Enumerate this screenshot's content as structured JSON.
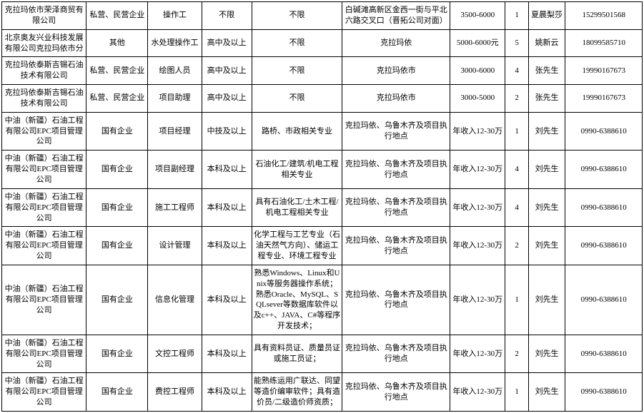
{
  "rows": [
    {
      "c0": "克拉玛依市荣泽商贸有限公司",
      "c1": "私营、民营企业",
      "c2": "操作工",
      "c3": "不限",
      "c4": "不限",
      "c5": "白碱滩高新区金西一街与平北六路交叉口（晋拓公司对面）",
      "c6": "3500-6000",
      "c7": "1",
      "c8": "夏晨梨莎",
      "c9": "15299501568"
    },
    {
      "c0": "北京奥友兴业科技发展有限公司克拉玛依市分",
      "c1": "其他",
      "c2": "水处理操作工",
      "c3": "高中及以上",
      "c4": "不限",
      "c5": "克拉玛依",
      "c6": "5000-6000元",
      "c7": "5",
      "c8": "姚新云",
      "c9": "18099585710"
    },
    {
      "c0": "克拉玛依泰斯吉锡石油技术有限公司",
      "c1": "私营、民营企业",
      "c2": "绘图人员",
      "c3": "高中及以上",
      "c4": "不限",
      "c5": "克拉玛依市",
      "c6": "3000-6000",
      "c7": "4",
      "c8": "张先生",
      "c9": "19990167673"
    },
    {
      "c0": "克拉玛依泰斯吉锡石油技术有限公司",
      "c1": "私营、民营企业",
      "c2": "项目助理",
      "c3": "高中及以上",
      "c4": "不限",
      "c5": "克拉玛依市",
      "c6": "3000-5000",
      "c7": "2",
      "c8": "张先生",
      "c9": "19990167673"
    },
    {
      "c0": "中油（新疆）石油工程有限公司EPC项目管理公司",
      "c1": "国有企业",
      "c2": "项目经理",
      "c3": "中技及以上",
      "c4": "路桥、市政相关专业",
      "c5": "克拉玛依、乌鲁木齐及项目执行地点",
      "c6": "年收入12-30万",
      "c7": "1",
      "c8": "刘先生",
      "c9": "0990-6388610"
    },
    {
      "c0": "中油（新疆）石油工程有限公司EPC项目管理公司",
      "c1": "国有企业",
      "c2": "项目副经理",
      "c3": "本科及以上",
      "c4": "石油化工/建筑/机电工程相关专业",
      "c5": "克拉玛依、乌鲁木齐及项目执行地点",
      "c6": "年收入12-30万",
      "c7": "4",
      "c8": "刘先生",
      "c9": "0990-6388610"
    },
    {
      "c0": "中油（新疆）石油工程有限公司EPC项目管理公司",
      "c1": "国有企业",
      "c2": "施工工程师",
      "c3": "本科及以上",
      "c4": "具有石油化工/土木工程/机电工程相关专业",
      "c5": "克拉玛依、乌鲁木齐及项目执行地点",
      "c6": "年收入12-30万",
      "c7": "4",
      "c8": "刘先生",
      "c9": "0990-6388610"
    },
    {
      "c0": "中油（新疆）石油工程有限公司EPC项目管理公司",
      "c1": "国有企业",
      "c2": "设计管理",
      "c3": "本科及以上",
      "c4": "化学工程与工艺专业（石油天然气方向）、储运工程专业、环境工程专业",
      "c5": "克拉玛依、乌鲁木齐及项目执行地点",
      "c6": "年收入12-30万",
      "c7": "2",
      "c8": "刘先生",
      "c9": "0990-6388610"
    },
    {
      "c0": "中油（新疆）石油工程有限公司EPC项目管理公司",
      "c1": "国有企业",
      "c2": "信息化管理",
      "c3": "本科及以上",
      "c4": "熟悉Windows、Linux和Unix等服务器操作系统；熟悉Oracle、MySQL、SQLsever等数据库软件以及c++、JAVA、C#等程序开发技术；",
      "c5": "克拉玛依、乌鲁木齐及项目执行地点",
      "c6": "年收入12-30万",
      "c7": "1",
      "c8": "刘先生",
      "c9": "0990-6388610"
    },
    {
      "c0": "中油（新疆）石油工程有限公司EPC项目管理公司",
      "c1": "国有企业",
      "c2": "文控工程师",
      "c3": "本科及以上",
      "c4": "具有资料员证、质量员证或施工员证；",
      "c5": "克拉玛依、乌鲁木齐及项目执行地点",
      "c6": "年收入12-30万",
      "c7": "2",
      "c8": "刘先生",
      "c9": "0990-6388610"
    },
    {
      "c0": "中油（新疆）石油工程有限公司EPC项目管理公司",
      "c1": "国有企业",
      "c2": "费控工程师",
      "c3": "本科及以上",
      "c4": "能熟练运用广联达、同望等造价编审软件；具有造价员/二级造价师资质；",
      "c5": "克拉玛依、乌鲁木齐及项目执行地点",
      "c6": "年收入12-30万",
      "c7": "1",
      "c8": "刘先生",
      "c9": "0990-6388610"
    }
  ]
}
